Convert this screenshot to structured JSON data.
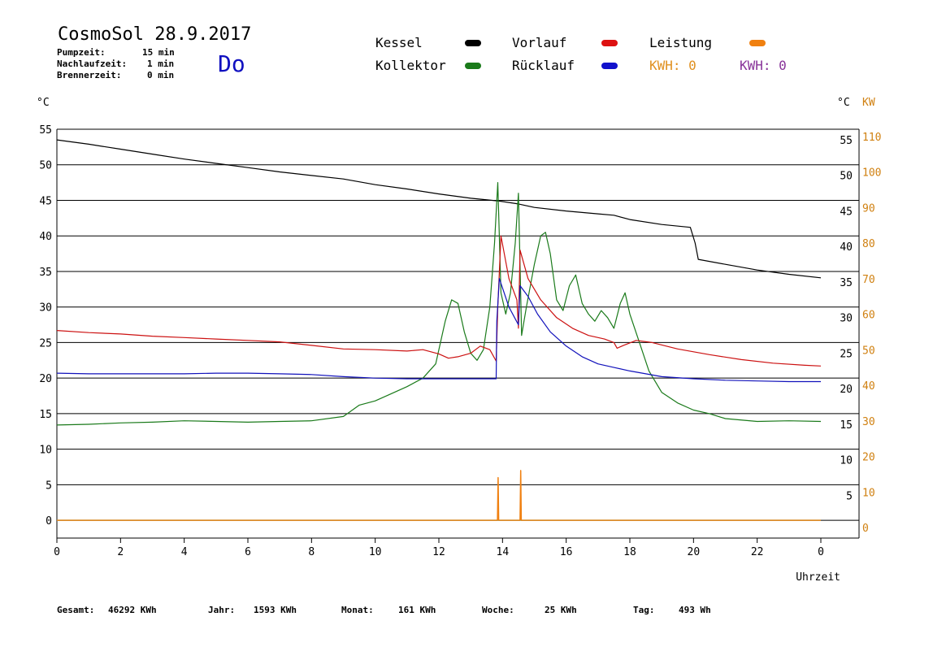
{
  "header": {
    "title": "CosmoSol 28.9.2017",
    "day": "Do",
    "params": [
      {
        "label": "Pumpzeit:",
        "value": "15 min"
      },
      {
        "label": "Nachlaufzeit:",
        "value": "1 min"
      },
      {
        "label": "Brennerzeit:",
        "value": "0 min"
      }
    ]
  },
  "legend": {
    "kessel": "Kessel",
    "kollektor": "Kollektor",
    "vorlauf": "Vorlauf",
    "ruecklauf": "Rücklauf",
    "leistung": "Leistung",
    "kwh1": "KWH: 0",
    "kwh2": "KWH: 0"
  },
  "footer": {
    "gesamt_label": "Gesamt:",
    "gesamt_value": "46292 KWh",
    "jahr_label": "Jahr:",
    "jahr_value": "1593 KWh",
    "monat_label": "Monat:",
    "monat_value": "161 KWh",
    "woche_label": "Woche:",
    "woche_value": "25 KWh",
    "tag_label": "Tag:",
    "tag_value": "493 Wh"
  },
  "colors": {
    "kessel": "#000000",
    "kollektor": "#1a7a1a",
    "vorlauf": "#cc1111",
    "ruecklauf": "#1111bb",
    "leistung": "#f08010",
    "kwh2": "#883399",
    "baseline": "#33dddd",
    "kw_axis": "#d08010"
  },
  "chart_data": {
    "type": "line",
    "xlabel": "Uhrzeit",
    "ylabel_left": "°C",
    "ylabel_right": "°C",
    "ylabel_right2": "KW",
    "xlim": [
      0,
      24
    ],
    "ylim": [
      -2.5,
      55
    ],
    "grid": true,
    "x_ticks": [
      "0",
      "2",
      "4",
      "6",
      "8",
      "10",
      "12",
      "14",
      "16",
      "18",
      "20",
      "22",
      "0"
    ],
    "y_ticks_left": [
      0,
      5,
      10,
      15,
      20,
      25,
      30,
      35,
      40,
      45,
      50,
      55
    ],
    "y_ticks_right": [
      5,
      10,
      15,
      20,
      25,
      30,
      35,
      40,
      45,
      50,
      55
    ],
    "y_ticks_kw": [
      0,
      10,
      20,
      30,
      40,
      50,
      60,
      70,
      80,
      90,
      100,
      110
    ],
    "series": [
      {
        "name": "Kessel",
        "color_key": "kessel",
        "x": [
          0,
          1,
          2,
          3,
          4,
          5,
          6,
          7,
          8,
          9,
          10,
          11,
          12,
          13,
          13.9,
          14.5,
          15,
          16,
          17,
          17.5,
          18,
          19,
          19.9,
          20.05,
          20.15,
          21,
          22,
          23,
          24
        ],
        "y": [
          53.5,
          52.9,
          52.2,
          51.5,
          50.8,
          50.2,
          49.6,
          49.0,
          48.5,
          48.0,
          47.2,
          46.6,
          45.9,
          45.3,
          44.9,
          44.5,
          44.0,
          43.5,
          43.1,
          42.9,
          42.3,
          41.6,
          41.2,
          39.0,
          36.7,
          36.0,
          35.2,
          34.6,
          34.1
        ]
      },
      {
        "name": "Kollektor",
        "color_key": "kollektor",
        "x": [
          0,
          1,
          2,
          3,
          4,
          5,
          6,
          7,
          8,
          9,
          9.5,
          10,
          10.5,
          11,
          11.5,
          11.9,
          12.2,
          12.4,
          12.6,
          12.8,
          13.0,
          13.2,
          13.4,
          13.6,
          13.75,
          13.85,
          13.95,
          14.1,
          14.25,
          14.4,
          14.5,
          14.6,
          14.75,
          15.0,
          15.2,
          15.35,
          15.5,
          15.7,
          15.9,
          16.1,
          16.3,
          16.5,
          16.7,
          16.9,
          17.1,
          17.3,
          17.5,
          17.7,
          17.85,
          18.0,
          18.3,
          18.6,
          19.0,
          19.5,
          20.0,
          20.5,
          21.0,
          22.0,
          23.0,
          24.0
        ],
        "y": [
          13.4,
          13.5,
          13.7,
          13.8,
          14.0,
          13.9,
          13.8,
          13.9,
          14.0,
          14.6,
          16.2,
          16.8,
          17.8,
          18.8,
          20.0,
          22.0,
          28.0,
          31.0,
          30.5,
          26.5,
          23.5,
          22.5,
          24.0,
          30.0,
          39.0,
          47.5,
          32.0,
          29.0,
          32.0,
          39.0,
          46.0,
          26.0,
          30.0,
          36.0,
          40.0,
          40.5,
          37.5,
          31.0,
          29.5,
          33.0,
          34.5,
          30.5,
          29.0,
          28.0,
          29.5,
          28.5,
          27.0,
          30.5,
          32.0,
          29.0,
          25.0,
          21.0,
          18.0,
          16.5,
          15.5,
          15.0,
          14.3,
          13.9,
          14.0,
          13.9
        ]
      },
      {
        "name": "Vorlauf",
        "color_key": "vorlauf",
        "x": [
          0,
          1,
          2,
          3,
          4,
          5,
          6,
          7,
          8,
          9,
          10,
          11,
          11.5,
          12,
          12.3,
          12.6,
          13,
          13.3,
          13.6,
          13.8,
          13.85,
          13.95,
          14.2,
          14.45,
          14.5,
          14.55,
          14.8,
          15.2,
          15.7,
          16.2,
          16.7,
          17.2,
          17.5,
          17.6,
          17.8,
          18.2,
          18.7,
          19.5,
          20.5,
          21.5,
          22.5,
          23.5,
          24
        ],
        "y": [
          26.7,
          26.4,
          26.2,
          25.9,
          25.7,
          25.5,
          25.3,
          25.1,
          24.6,
          24.1,
          24.0,
          23.8,
          24.0,
          23.4,
          22.8,
          23.0,
          23.5,
          24.5,
          24.0,
          22.4,
          30.0,
          40.0,
          34.0,
          31.0,
          27.0,
          38.0,
          34.0,
          31.0,
          28.5,
          27.0,
          26.0,
          25.5,
          25.0,
          24.2,
          24.6,
          25.3,
          25.0,
          24.1,
          23.3,
          22.6,
          22.1,
          21.8,
          21.7
        ]
      },
      {
        "name": "Rücklauf",
        "color_key": "ruecklauf",
        "x": [
          0,
          1,
          2,
          3,
          4,
          5,
          6,
          7,
          8,
          9,
          10,
          11,
          12,
          13,
          13.8,
          13.82,
          13.9,
          14.2,
          14.5,
          14.55,
          14.8,
          15.1,
          15.5,
          16,
          16.5,
          17,
          17.5,
          18,
          18.5,
          19,
          20,
          21,
          22,
          23,
          24
        ],
        "y": [
          20.7,
          20.6,
          20.6,
          20.6,
          20.6,
          20.7,
          20.7,
          20.6,
          20.5,
          20.2,
          20.0,
          19.9,
          19.9,
          19.9,
          19.9,
          28.0,
          34.0,
          30.0,
          27.5,
          33.0,
          31.5,
          29.0,
          26.5,
          24.5,
          23.0,
          22.0,
          21.5,
          21.0,
          20.6,
          20.2,
          19.9,
          19.7,
          19.6,
          19.5,
          19.5
        ]
      },
      {
        "name": "Leistung",
        "color_key": "leistung",
        "x": [
          0,
          13.84,
          13.86,
          13.88,
          14.55,
          14.57,
          14.59,
          24
        ],
        "y": [
          0,
          0,
          6.0,
          0,
          0,
          7.0,
          0,
          0
        ]
      }
    ]
  }
}
